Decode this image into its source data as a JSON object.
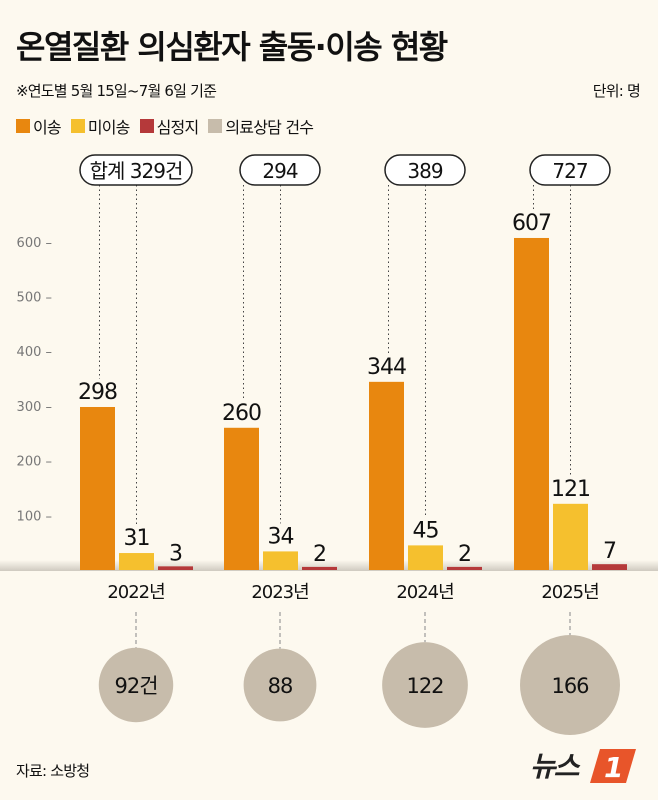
{
  "title": "온열질환 의심환자 출동·이송 현황",
  "subtitle": "※연도별 5월 15일~7월 6일 기준",
  "unit": "단위: 명",
  "source": "자료: 소방청",
  "logo": "뉴스1",
  "colors": {
    "이송": "#e8870f",
    "미이송": "#f5c02e",
    "심정지": "#b5393a",
    "의료상담 건수": "#c7bcab",
    "background": "#fdf9ef"
  },
  "legend": [
    {
      "label": "이송"
    },
    {
      "label": "미이송"
    },
    {
      "label": "심정지"
    },
    {
      "label": "의료상담 건수"
    }
  ],
  "chart_data": {
    "type": "bar",
    "categories": [
      "2022년",
      "2023년",
      "2024년",
      "2025년"
    ],
    "series": [
      {
        "name": "이송",
        "values": [
          298,
          260,
          344,
          607
        ]
      },
      {
        "name": "미이송",
        "values": [
          31,
          34,
          45,
          121
        ]
      },
      {
        "name": "심정지",
        "values": [
          3,
          2,
          2,
          7
        ]
      }
    ],
    "totals": [
      "합계 329건",
      "294",
      "389",
      "727"
    ],
    "consultations": {
      "name": "의료상담 건수",
      "values": [
        92,
        88,
        122,
        166
      ],
      "labels": [
        "92건",
        "88",
        "122",
        "166"
      ]
    },
    "yticks": [
      100,
      200,
      300,
      400,
      500,
      600
    ],
    "ylim": [
      0,
      620
    ],
    "grid": false
  }
}
